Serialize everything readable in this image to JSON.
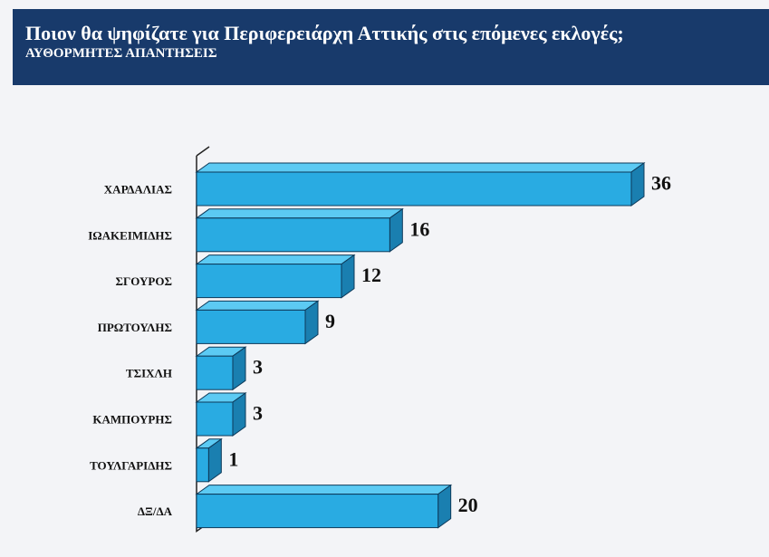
{
  "header": {
    "title": "Ποιον θα ψηφίζατε για Περιφερειάρχη Αττικής στις επόμενες εκλογές;",
    "subtitle": "ΑΥΘΟΡΜΗΤΕΣ ΑΠΑΝΤΗΣΕΙΣ"
  },
  "chart_data": {
    "type": "bar",
    "orientation": "horizontal",
    "title": "Ποιον θα ψηφίζατε για Περιφερειάρχη Αττικής στις επόμενες εκλογές;",
    "subtitle": "ΑΥΘΟΡΜΗΤΕΣ ΑΠΑΝΤΗΣΕΙΣ",
    "categories": [
      "ΧΑΡΔΑΛΙΑΣ",
      "ΙΩΑΚΕΙΜΙΔΗΣ",
      "ΣΓΟΥΡΟΣ",
      "ΠΡΩΤΟΥΛΗΣ",
      "ΤΣΙΧΛΗ",
      "ΚΑΜΠΟΥΡΗΣ",
      "ΤΟΥΛΓΑΡΙΔΗΣ",
      "ΔΞ/ΔΑ"
    ],
    "values": [
      36,
      16,
      12,
      9,
      3,
      3,
      1,
      20
    ],
    "xlim": [
      0,
      36
    ],
    "grid": false,
    "legend": "none",
    "colors": {
      "bar_front": "#29abe2",
      "bar_top": "#5ccaf3",
      "bar_side": "#1a7fb0",
      "stroke": "#0d3a5a"
    }
  }
}
